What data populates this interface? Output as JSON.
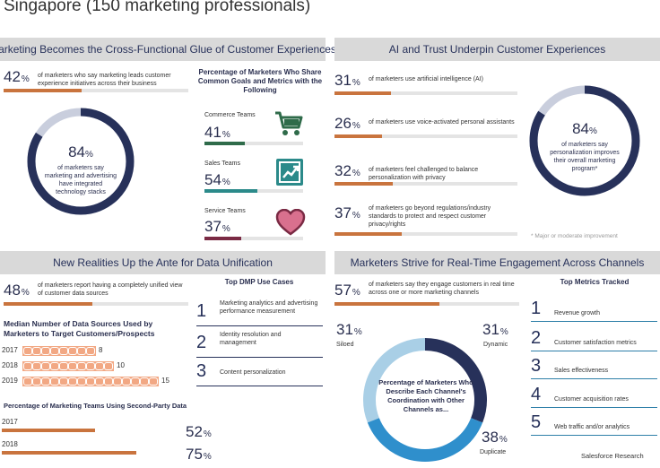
{
  "title": "Singapore (150 marketing professionals)",
  "colors": {
    "navy": "#27315a",
    "orange": "#c9743e",
    "sky": "#5fa8d3",
    "panel_header": "#d9d9d9",
    "green": "#2f6b4a",
    "teal": "#2b8a8a",
    "maroon": "#7a2a44"
  },
  "panel1": {
    "header": "Marketing Becomes the Cross-Functional Glue of Customer Experiences",
    "stat1": {
      "value": "42",
      "unit": "%",
      "fraction": 0.42,
      "text": "of marketers who say marketing leads customer experience initiatives across their business"
    },
    "ring": {
      "value": "84",
      "unit": "%",
      "fraction": 0.84,
      "text": "of marketers say marketing and advertising have integrated technology stacks"
    },
    "goals_title": "Percentage of Marketers Who Share Common Goals and Metrics with the Following",
    "teams": [
      {
        "label": "Commerce Teams",
        "value": "41",
        "unit": "%",
        "fraction": 0.41,
        "icon": "shopping-cart-icon"
      },
      {
        "label": "Sales Teams",
        "value": "54",
        "unit": "%",
        "fraction": 0.54,
        "icon": "growth-chart-icon"
      },
      {
        "label": "Service Teams",
        "value": "37",
        "unit": "%",
        "fraction": 0.37,
        "icon": "heart-icon"
      }
    ]
  },
  "panel2": {
    "header": "AI and Trust Underpin Customer Experiences",
    "stats": [
      {
        "value": "31",
        "unit": "%",
        "fraction": 0.31,
        "text": "of marketers use artificial intelligence (AI)"
      },
      {
        "value": "26",
        "unit": "%",
        "fraction": 0.26,
        "text": "of marketers use voice-activated personal assistants"
      },
      {
        "value": "32",
        "unit": "%",
        "fraction": 0.32,
        "text": "of marketers feel challenged to balance personalization with privacy"
      },
      {
        "value": "37",
        "unit": "%",
        "fraction": 0.37,
        "text": "of marketers go beyond regulations/industry standards to protect and respect customer privacy/rights"
      }
    ],
    "ring": {
      "value": "84",
      "unit": "%",
      "fraction": 0.84,
      "text": "of marketers say personalization improves their overall marketing program*"
    },
    "footnote": "* Major or moderate improvement"
  },
  "panel3": {
    "header": "New Realities Up the Ante for Data Unification",
    "stat": {
      "value": "48",
      "unit": "%",
      "fraction": 0.48,
      "text": "of marketers report having a completely unified view of customer data sources"
    },
    "sources_title": "Median Number of Data Sources Used by Marketers to Target Customers/Prospects",
    "sources": [
      {
        "year": "2017",
        "value": "8",
        "count": 8
      },
      {
        "year": "2018",
        "value": "10",
        "count": 10
      },
      {
        "year": "2019",
        "value": "15",
        "count": 15
      }
    ],
    "second_party_title": "Percentage of Marketing Teams Using Second-Party Data",
    "second_party": [
      {
        "year": "2017",
        "value": "52",
        "unit": "%",
        "fraction": 0.52
      },
      {
        "year": "2018",
        "value": "75",
        "unit": "%",
        "fraction": 0.75
      }
    ],
    "dmp_title": "Top DMP Use Cases",
    "dmp": [
      {
        "num": "1",
        "text": "Marketing analytics and advertising performance measurement"
      },
      {
        "num": "2",
        "text": "Identity resolution and management"
      },
      {
        "num": "3",
        "text": "Content personalization"
      }
    ]
  },
  "panel4": {
    "header": "Marketers Strive for Real-Time Engagement Across Channels",
    "stat": {
      "value": "57",
      "unit": "%",
      "fraction": 0.57,
      "text": "of marketers say they engage customers in real time across one or more marketing channels"
    },
    "donut": {
      "center_text": "Percentage of Marketers Who Describe Each Channel's Coordination with Other Channels as...",
      "segments": [
        {
          "label": "Siloed",
          "value": "31",
          "unit": "%",
          "fraction": 0.31,
          "color": "#a9cfe6"
        },
        {
          "label": "Dynamic",
          "value": "31",
          "unit": "%",
          "fraction": 0.31,
          "color": "#27315a"
        },
        {
          "label": "Duplicate",
          "value": "38",
          "unit": "%",
          "fraction": 0.38,
          "color": "#2f8fcc"
        }
      ]
    },
    "metrics_title": "Top Metrics Tracked",
    "metrics": [
      {
        "num": "1",
        "text": "Revenue growth"
      },
      {
        "num": "2",
        "text": "Customer satisfaction metrics"
      },
      {
        "num": "3",
        "text": "Sales effectiveness"
      },
      {
        "num": "4",
        "text": "Customer acquisition rates"
      },
      {
        "num": "5",
        "text": "Web traffic and/or analytics"
      }
    ]
  },
  "source": "Salesforce Research"
}
